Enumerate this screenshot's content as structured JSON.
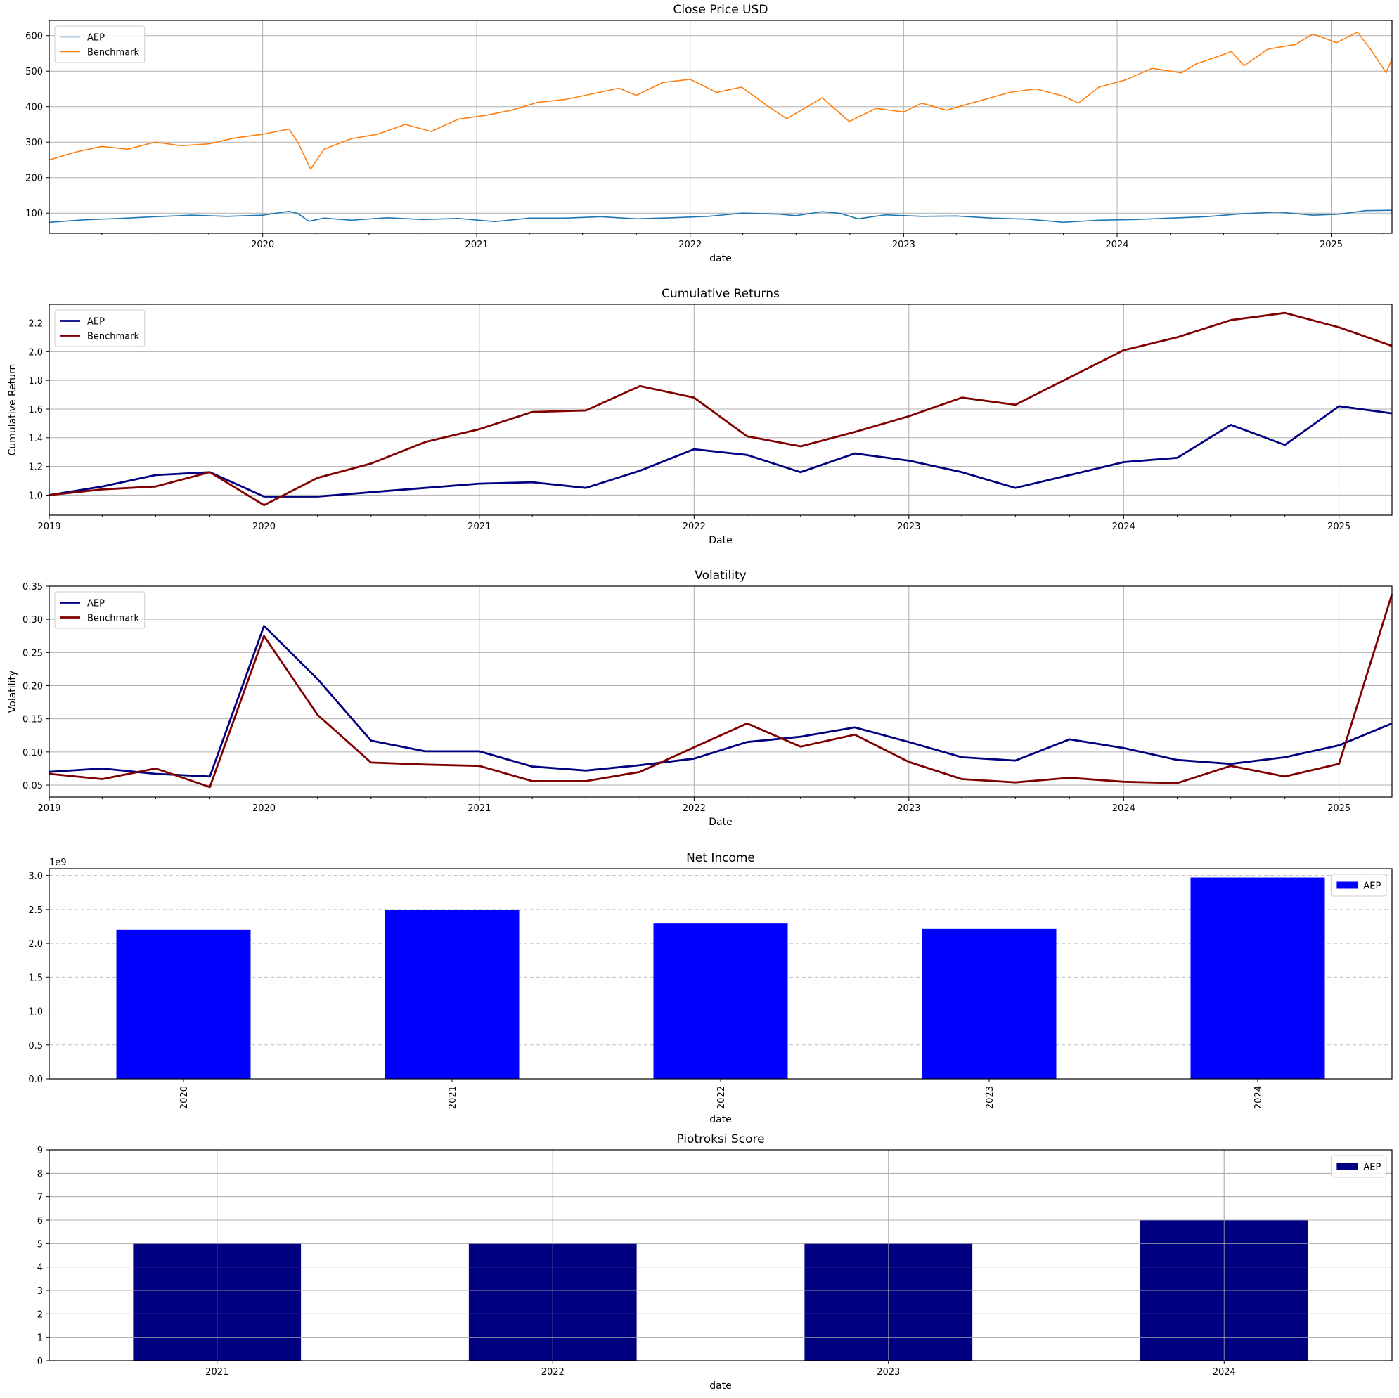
{
  "figure": {
    "background": "#ffffff"
  },
  "chart_data": [
    {
      "id": "close_price",
      "type": "line",
      "title": "Close Price USD",
      "xlabel": "date",
      "ylabel": "",
      "x_type": "date",
      "xlim": [
        "2019-01-01",
        "2025-04-15"
      ],
      "ylim": [
        43,
        643
      ],
      "x_ticks": [
        "2020-01-01",
        "2021-01-01",
        "2022-01-01",
        "2023-01-01",
        "2024-01-01",
        "2025-01-01"
      ],
      "x_tick_labels": [
        "2020",
        "2021",
        "2022",
        "2023",
        "2024",
        "2025"
      ],
      "y_ticks": [
        100,
        200,
        300,
        400,
        500,
        600
      ],
      "y_tick_labels": [
        "100",
        "200",
        "300",
        "400",
        "500",
        "600"
      ],
      "grid": true,
      "legend": "top-left",
      "series": [
        {
          "name": "AEP",
          "color": "#1f77b4",
          "linewidth": 1.6,
          "points": [
            [
              "2019-01-01",
              74
            ],
            [
              "2019-03-01",
              81
            ],
            [
              "2019-05-01",
              85
            ],
            [
              "2019-07-01",
              90
            ],
            [
              "2019-09-01",
              94
            ],
            [
              "2019-11-01",
              91
            ],
            [
              "2020-01-01",
              94
            ],
            [
              "2020-02-15",
              105
            ],
            [
              "2020-03-01",
              99
            ],
            [
              "2020-03-20",
              77
            ],
            [
              "2020-04-15",
              86
            ],
            [
              "2020-06-01",
              80
            ],
            [
              "2020-08-01",
              87
            ],
            [
              "2020-10-01",
              82
            ],
            [
              "2020-12-01",
              85
            ],
            [
              "2021-02-01",
              76
            ],
            [
              "2021-04-01",
              86
            ],
            [
              "2021-06-01",
              86
            ],
            [
              "2021-08-01",
              90
            ],
            [
              "2021-10-01",
              84
            ],
            [
              "2021-12-01",
              87
            ],
            [
              "2022-02-01",
              91
            ],
            [
              "2022-04-01",
              100
            ],
            [
              "2022-06-01",
              97
            ],
            [
              "2022-07-01",
              93
            ],
            [
              "2022-08-15",
              104
            ],
            [
              "2022-09-15",
              99
            ],
            [
              "2022-10-15",
              84
            ],
            [
              "2022-12-01",
              95
            ],
            [
              "2023-02-01",
              91
            ],
            [
              "2023-04-01",
              92
            ],
            [
              "2023-06-01",
              86
            ],
            [
              "2023-08-01",
              83
            ],
            [
              "2023-10-01",
              74
            ],
            [
              "2023-12-01",
              80
            ],
            [
              "2024-02-01",
              82
            ],
            [
              "2024-04-01",
              86
            ],
            [
              "2024-06-01",
              90
            ],
            [
              "2024-08-01",
              98
            ],
            [
              "2024-10-01",
              103
            ],
            [
              "2024-12-01",
              94
            ],
            [
              "2025-01-15",
              97
            ],
            [
              "2025-03-01",
              107
            ],
            [
              "2025-04-15",
              108
            ]
          ]
        },
        {
          "name": "Benchmark",
          "color": "#ff7f0e",
          "linewidth": 1.6,
          "points": [
            [
              "2019-01-01",
              250
            ],
            [
              "2019-02-15",
              272
            ],
            [
              "2019-04-01",
              288
            ],
            [
              "2019-05-15",
              280
            ],
            [
              "2019-07-01",
              300
            ],
            [
              "2019-08-15",
              290
            ],
            [
              "2019-10-01",
              295
            ],
            [
              "2019-11-15",
              312
            ],
            [
              "2020-01-01",
              322
            ],
            [
              "2020-02-15",
              337
            ],
            [
              "2020-03-01",
              300
            ],
            [
              "2020-03-23",
              224
            ],
            [
              "2020-04-15",
              280
            ],
            [
              "2020-06-01",
              310
            ],
            [
              "2020-07-15",
              322
            ],
            [
              "2020-09-01",
              350
            ],
            [
              "2020-10-15",
              330
            ],
            [
              "2020-12-01",
              365
            ],
            [
              "2021-01-15",
              375
            ],
            [
              "2021-03-01",
              390
            ],
            [
              "2021-04-15",
              412
            ],
            [
              "2021-06-01",
              420
            ],
            [
              "2021-07-15",
              435
            ],
            [
              "2021-09-01",
              452
            ],
            [
              "2021-10-01",
              432
            ],
            [
              "2021-11-15",
              468
            ],
            [
              "2022-01-01",
              477
            ],
            [
              "2022-02-15",
              440
            ],
            [
              "2022-03-30",
              455
            ],
            [
              "2022-05-15",
              400
            ],
            [
              "2022-06-15",
              366
            ],
            [
              "2022-08-15",
              425
            ],
            [
              "2022-09-30",
              358
            ],
            [
              "2022-11-15",
              395
            ],
            [
              "2023-01-01",
              385
            ],
            [
              "2023-02-01",
              410
            ],
            [
              "2023-03-15",
              390
            ],
            [
              "2023-05-01",
              412
            ],
            [
              "2023-07-01",
              440
            ],
            [
              "2023-08-15",
              450
            ],
            [
              "2023-10-01",
              430
            ],
            [
              "2023-10-27",
              410
            ],
            [
              "2023-12-01",
              455
            ],
            [
              "2024-01-15",
              475
            ],
            [
              "2024-03-01",
              508
            ],
            [
              "2024-04-20",
              495
            ],
            [
              "2024-05-15",
              520
            ],
            [
              "2024-07-15",
              555
            ],
            [
              "2024-08-05",
              515
            ],
            [
              "2024-09-15",
              562
            ],
            [
              "2024-11-01",
              575
            ],
            [
              "2024-12-01",
              605
            ],
            [
              "2025-01-10",
              580
            ],
            [
              "2025-02-15",
              610
            ],
            [
              "2025-03-10",
              560
            ],
            [
              "2025-04-05",
              495
            ],
            [
              "2025-04-15",
              535
            ]
          ]
        }
      ]
    },
    {
      "id": "cumulative_returns",
      "type": "line",
      "title": "Cumulative Returns",
      "xlabel": "Date",
      "ylabel": "Cumulative Return",
      "x_type": "date",
      "xlim": [
        "2019-01-01",
        "2025-04-01"
      ],
      "ylim": [
        0.86,
        2.33
      ],
      "x_ticks": [
        "2019-01-01",
        "2020-01-01",
        "2021-01-01",
        "2022-01-01",
        "2023-01-01",
        "2024-01-01",
        "2025-01-01"
      ],
      "x_tick_labels": [
        "2019",
        "2020",
        "2021",
        "2022",
        "2023",
        "2024",
        "2025"
      ],
      "y_ticks": [
        1.0,
        1.2,
        1.4,
        1.6,
        1.8,
        2.0,
        2.2
      ],
      "y_tick_labels": [
        "1.0",
        "1.2",
        "1.4",
        "1.6",
        "1.8",
        "2.0",
        "2.2"
      ],
      "grid": true,
      "legend": "top-left",
      "x": [
        "2019-01-01",
        "2019-04-01",
        "2019-07-01",
        "2019-10-01",
        "2020-01-01",
        "2020-04-01",
        "2020-07-01",
        "2020-10-01",
        "2021-01-01",
        "2021-04-01",
        "2021-07-01",
        "2021-10-01",
        "2022-01-01",
        "2022-04-01",
        "2022-07-01",
        "2022-10-01",
        "2023-01-01",
        "2023-04-01",
        "2023-07-01",
        "2023-10-01",
        "2024-01-01",
        "2024-04-01",
        "2024-07-01",
        "2024-10-01",
        "2025-01-01",
        "2025-04-01"
      ],
      "series": [
        {
          "name": "AEP",
          "color": "#000080",
          "linewidth": 2.8,
          "values": [
            1.0,
            1.06,
            1.14,
            1.16,
            0.99,
            0.99,
            1.02,
            1.05,
            1.08,
            1.09,
            1.05,
            1.17,
            1.32,
            1.28,
            1.16,
            1.29,
            1.24,
            1.16,
            1.05,
            1.14,
            1.23,
            1.26,
            1.49,
            1.35,
            1.62,
            1.57
          ]
        },
        {
          "name": "Benchmark",
          "color": "#800000",
          "linewidth": 2.8,
          "values": [
            1.0,
            1.04,
            1.06,
            1.16,
            0.93,
            1.12,
            1.22,
            1.37,
            1.46,
            1.58,
            1.59,
            1.76,
            1.68,
            1.41,
            1.34,
            1.44,
            1.55,
            1.68,
            1.63,
            1.82,
            2.01,
            2.1,
            2.22,
            2.27,
            2.17,
            2.04
          ]
        }
      ]
    },
    {
      "id": "volatility",
      "type": "line",
      "title": "Volatility",
      "xlabel": "Date",
      "ylabel": "Volatility",
      "x_type": "date",
      "xlim": [
        "2019-01-01",
        "2025-04-01"
      ],
      "ylim": [
        0.032,
        0.35
      ],
      "x_ticks": [
        "2019-01-01",
        "2020-01-01",
        "2021-01-01",
        "2022-01-01",
        "2023-01-01",
        "2024-01-01",
        "2025-01-01"
      ],
      "x_tick_labels": [
        "2019",
        "2020",
        "2021",
        "2022",
        "2023",
        "2024",
        "2025"
      ],
      "y_ticks": [
        0.05,
        0.1,
        0.15,
        0.2,
        0.25,
        0.3,
        0.35
      ],
      "y_tick_labels": [
        "0.05",
        "0.10",
        "0.15",
        "0.20",
        "0.25",
        "0.30",
        "0.35"
      ],
      "grid": true,
      "legend": "top-left",
      "x": [
        "2019-01-01",
        "2019-04-01",
        "2019-07-01",
        "2019-10-01",
        "2020-01-01",
        "2020-04-01",
        "2020-07-01",
        "2020-10-01",
        "2021-01-01",
        "2021-04-01",
        "2021-07-01",
        "2021-10-01",
        "2022-01-01",
        "2022-04-01",
        "2022-07-01",
        "2022-10-01",
        "2023-01-01",
        "2023-04-01",
        "2023-07-01",
        "2023-10-01",
        "2024-01-01",
        "2024-04-01",
        "2024-07-01",
        "2024-10-01",
        "2025-01-01",
        "2025-04-01"
      ],
      "series": [
        {
          "name": "AEP",
          "color": "#000080",
          "linewidth": 2.8,
          "values": [
            0.07,
            0.075,
            0.067,
            0.063,
            0.29,
            0.21,
            0.117,
            0.101,
            0.101,
            0.078,
            0.072,
            0.08,
            0.09,
            0.115,
            0.123,
            0.137,
            0.115,
            0.092,
            0.087,
            0.119,
            0.106,
            0.088,
            0.082,
            0.092,
            0.11,
            0.143
          ]
        },
        {
          "name": "Benchmark",
          "color": "#800000",
          "linewidth": 2.8,
          "values": [
            0.067,
            0.059,
            0.075,
            0.047,
            0.275,
            0.156,
            0.084,
            0.081,
            0.079,
            0.056,
            0.056,
            0.07,
            0.107,
            0.143,
            0.108,
            0.126,
            0.085,
            0.059,
            0.054,
            0.061,
            0.055,
            0.053,
            0.079,
            0.063,
            0.082,
            0.338
          ]
        }
      ]
    },
    {
      "id": "net_income",
      "type": "bar",
      "title": "Net Income",
      "xlabel": "date",
      "ylabel": "",
      "offset_label": "1e9",
      "categories": [
        "2020",
        "2021",
        "2022",
        "2023",
        "2024"
      ],
      "ylim": [
        0,
        3.1
      ],
      "y_ticks": [
        0.0,
        0.5,
        1.0,
        1.5,
        2.0,
        2.5,
        3.0
      ],
      "y_tick_labels": [
        "0.0",
        "0.5",
        "1.0",
        "1.5",
        "2.0",
        "2.5",
        "3.0"
      ],
      "x_tick_rotation": 90,
      "grid": "y-dashed",
      "legend": "top-right",
      "series": [
        {
          "name": "AEP",
          "color": "#0000ff",
          "values": [
            2.2,
            2.49,
            2.3,
            2.21,
            2.97
          ]
        }
      ]
    },
    {
      "id": "piotroski",
      "type": "bar",
      "title": "Piotroksi Score",
      "xlabel": "date",
      "ylabel": "",
      "categories": [
        "2021",
        "2022",
        "2023",
        "2024"
      ],
      "ylim": [
        0,
        9
      ],
      "y_ticks": [
        0,
        1,
        2,
        3,
        4,
        5,
        6,
        7,
        8,
        9
      ],
      "y_tick_labels": [
        "0",
        "1",
        "2",
        "3",
        "4",
        "5",
        "6",
        "7",
        "8",
        "9"
      ],
      "grid": true,
      "legend": "top-right",
      "series": [
        {
          "name": "AEP",
          "color": "#000080",
          "values": [
            5,
            5,
            5,
            6
          ]
        }
      ]
    }
  ]
}
